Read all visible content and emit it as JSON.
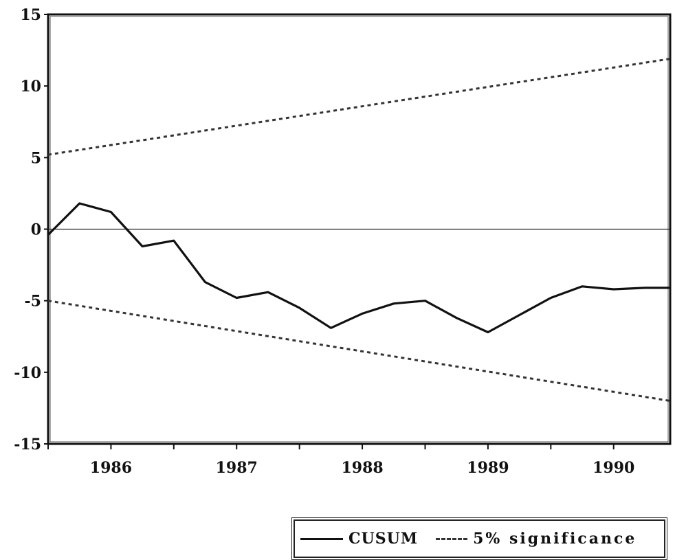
{
  "chart_data": {
    "type": "line",
    "x_tick_labels": [
      "1986",
      "1987",
      "1988",
      "1989",
      "1990"
    ],
    "x_ticks": [
      1986.0,
      1987.0,
      1988.0,
      1989.0,
      1990.0
    ],
    "xlim": [
      1985.5,
      1990.45
    ],
    "y_tick_labels": [
      "15",
      "10",
      "5",
      "0",
      "-5",
      "-10",
      "-15"
    ],
    "y_ticks": [
      15,
      10,
      5,
      0,
      -5,
      -10,
      -15
    ],
    "ylim": [
      -15,
      15
    ],
    "zero_line": true,
    "grid": false,
    "legend_position": "bottom-right",
    "series": [
      {
        "name": "CUSUM",
        "style": "solid",
        "color": "#111111",
        "x": [
          1985.5,
          1985.75,
          1986.0,
          1986.25,
          1986.5,
          1986.75,
          1987.0,
          1987.25,
          1987.5,
          1987.75,
          1988.0,
          1988.25,
          1988.5,
          1988.75,
          1989.0,
          1989.25,
          1989.5,
          1989.75,
          1990.0,
          1990.25,
          1990.45
        ],
        "y": [
          -0.4,
          1.8,
          1.2,
          -1.2,
          -0.8,
          -3.7,
          -4.8,
          -4.4,
          -5.5,
          -6.9,
          -5.9,
          -5.2,
          -5.0,
          -6.2,
          -7.2,
          -6.0,
          -4.8,
          -4.0,
          -4.2,
          -4.1,
          -4.1
        ]
      },
      {
        "name": "5% significance",
        "style": "dashed",
        "color": "#333333",
        "x": [
          1985.5,
          1990.45
        ],
        "y": [
          5.2,
          11.9
        ]
      },
      {
        "name": "5% significance",
        "style": "dashed",
        "color": "#333333",
        "x": [
          1985.5,
          1990.45
        ],
        "y": [
          -5.0,
          -12.0
        ]
      }
    ]
  },
  "legend": {
    "cusum_label": "CUSUM",
    "significance_label": "5% significance"
  }
}
